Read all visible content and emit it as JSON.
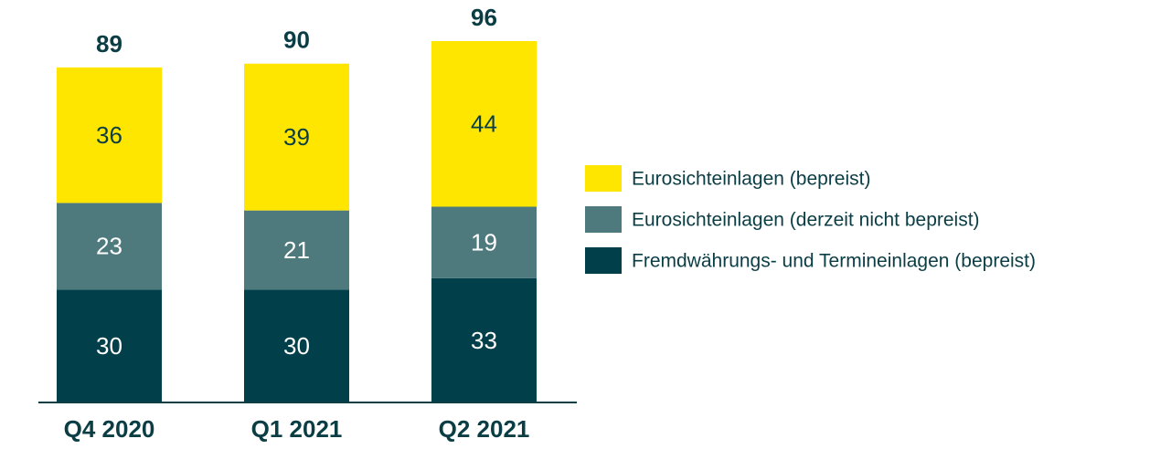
{
  "chart_data": {
    "type": "stacked_bar",
    "categories": [
      "Q4 2020",
      "Q1 2021",
      "Q2 2021"
    ],
    "series": [
      {
        "name": "Fremdwährungs- und Termineinlagen (bepreist)",
        "color": "#01404a",
        "values": [
          30,
          30,
          33
        ]
      },
      {
        "name": "Eurosichteinlagen (derzeit nicht bepreist)",
        "color": "#4e7a7e",
        "values": [
          23,
          21,
          19
        ]
      },
      {
        "name": "Eurosichteinlagen (bepreist)",
        "color": "#ffe600",
        "values": [
          36,
          39,
          44
        ]
      }
    ],
    "totals": [
      89,
      90,
      96
    ],
    "legend": "right"
  }
}
